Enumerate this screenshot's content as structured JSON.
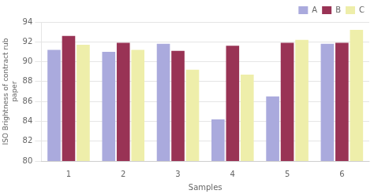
{
  "chart_data": {
    "type": "bar",
    "categories": [
      "1",
      "2",
      "3",
      "4",
      "5",
      "6"
    ],
    "series": [
      {
        "name": "A",
        "color": "#aaaadd",
        "values": [
          91.2,
          91.0,
          91.8,
          84.2,
          86.5,
          91.8
        ]
      },
      {
        "name": "B",
        "color": "#993355",
        "values": [
          92.6,
          91.9,
          91.1,
          91.6,
          91.9,
          91.9
        ]
      },
      {
        "name": "C",
        "color": "#eeeeaa",
        "values": [
          91.7,
          91.2,
          89.2,
          88.7,
          92.2,
          93.2
        ]
      }
    ],
    "xlabel": "Samples",
    "ylabel": "ISO Brightness of contract rub\npaper",
    "ylim": [
      80,
      94
    ],
    "yticks": [
      80,
      82,
      84,
      86,
      88,
      90,
      92,
      94
    ],
    "grid": true,
    "legend": "upper right"
  }
}
